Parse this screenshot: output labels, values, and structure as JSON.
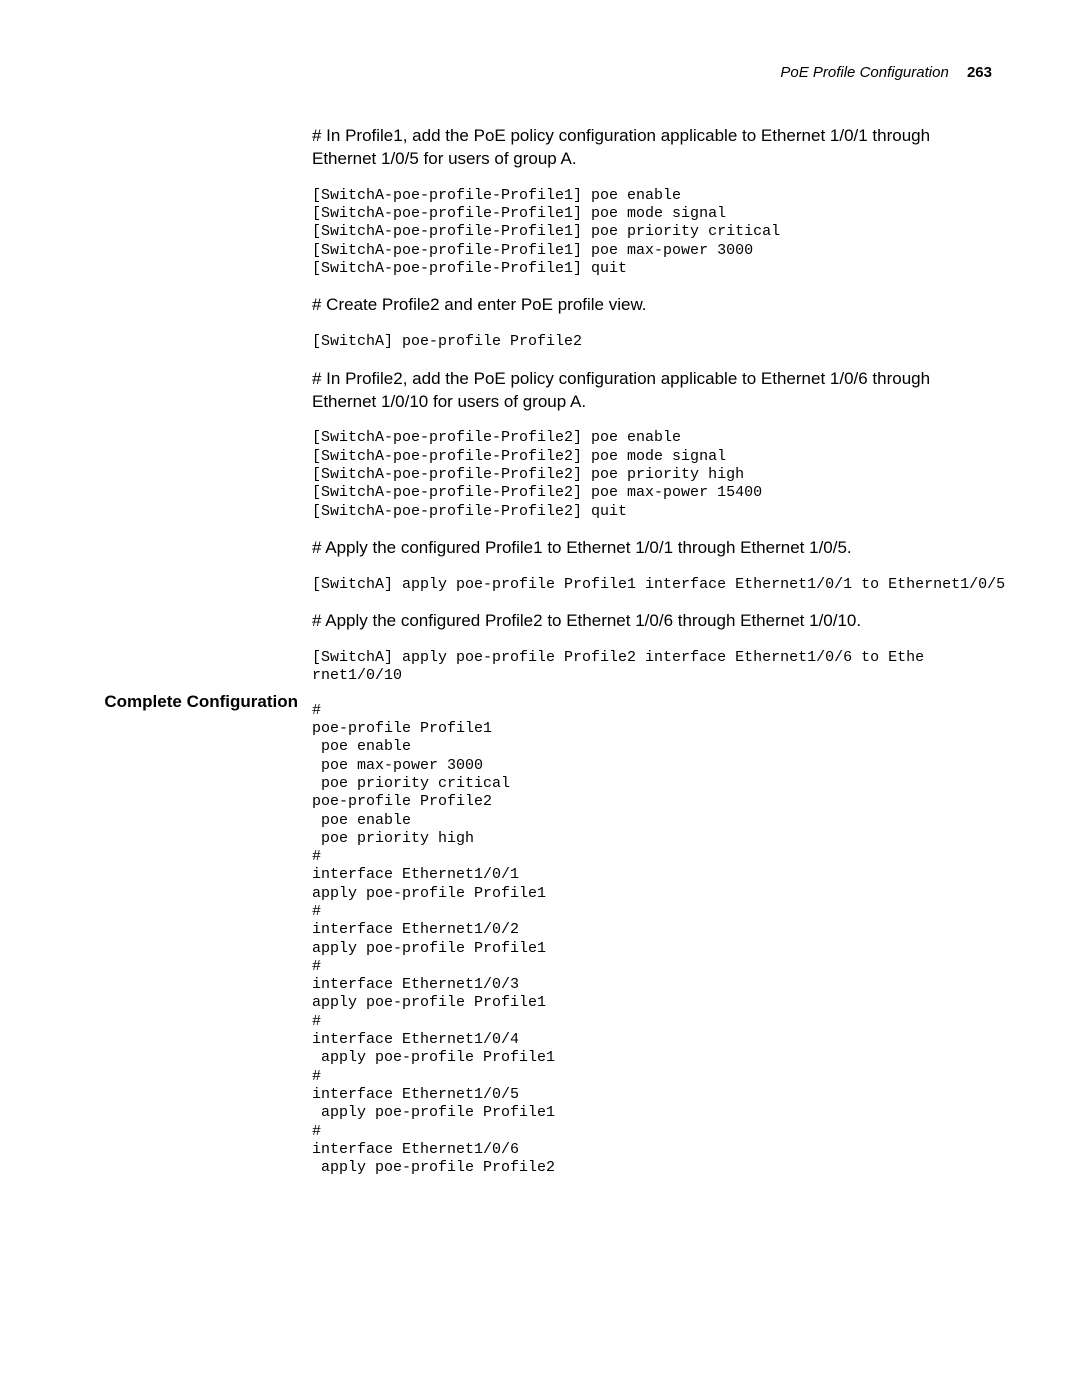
{
  "header": {
    "title": "PoE Profile Configuration",
    "page_number": "263"
  },
  "side_heading": "Complete Configuration",
  "blocks": [
    {
      "type": "para",
      "text": "# In Profile1, add the PoE policy configuration applicable to Ethernet 1/0/1 through Ethernet 1/0/5 for users of group A."
    },
    {
      "type": "code",
      "text": "[SwitchA-poe-profile-Profile1] poe enable\n[SwitchA-poe-profile-Profile1] poe mode signal\n[SwitchA-poe-profile-Profile1] poe priority critical\n[SwitchA-poe-profile-Profile1] poe max-power 3000\n[SwitchA-poe-profile-Profile1] quit"
    },
    {
      "type": "para",
      "text": "# Create Profile2 and enter PoE profile view."
    },
    {
      "type": "code",
      "text": "[SwitchA] poe-profile Profile2"
    },
    {
      "type": "para",
      "text": "# In Profile2, add the PoE policy configuration applicable to Ethernet 1/0/6 through Ethernet 1/0/10 for users of group A."
    },
    {
      "type": "code",
      "text": "[SwitchA-poe-profile-Profile2] poe enable\n[SwitchA-poe-profile-Profile2] poe mode signal\n[SwitchA-poe-profile-Profile2] poe priority high\n[SwitchA-poe-profile-Profile2] poe max-power 15400\n[SwitchA-poe-profile-Profile2] quit"
    },
    {
      "type": "para",
      "text": "# Apply the configured Profile1 to Ethernet 1/0/1 through Ethernet 1/0/5."
    },
    {
      "type": "code",
      "text": "[SwitchA] apply poe-profile Profile1 interface Ethernet1/0/1 to Ethernet1/0/5"
    },
    {
      "type": "para",
      "text": "# Apply the configured Profile2 to Ethernet 1/0/6 through Ethernet 1/0/10."
    },
    {
      "type": "code",
      "text": "[SwitchA] apply poe-profile Profile2 interface Ethernet1/0/6 to Ethe\nrnet1/0/10"
    },
    {
      "type": "code",
      "last": true,
      "text": "#\npoe-profile Profile1\n poe enable\n poe max-power 3000\n poe priority critical\npoe-profile Profile2\n poe enable\n poe priority high\n#\ninterface Ethernet1/0/1\napply poe-profile Profile1\n#\ninterface Ethernet1/0/2\napply poe-profile Profile1\n#\ninterface Ethernet1/0/3\napply poe-profile Profile1\n#\ninterface Ethernet1/0/4\n apply poe-profile Profile1\n#\ninterface Ethernet1/0/5\n apply poe-profile Profile1\n#\ninterface Ethernet1/0/6\n apply poe-profile Profile2"
    }
  ]
}
